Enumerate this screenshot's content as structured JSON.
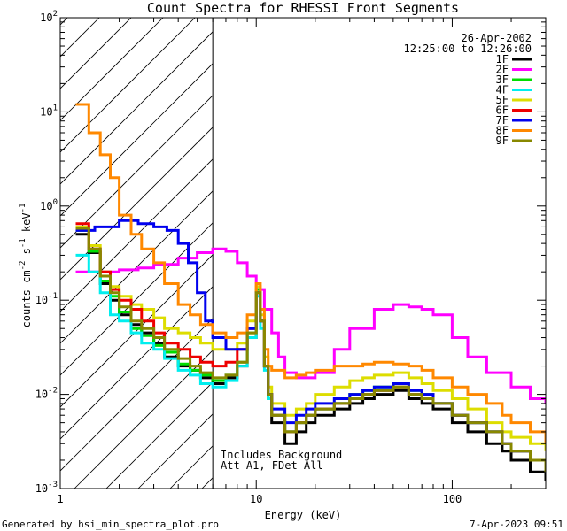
{
  "chart_data": {
    "type": "line",
    "title": "Count Spectra for RHESSI Front Segments",
    "xlabel": "Energy (keV)",
    "ylabel_base": "counts cm",
    "ylabel_exp1": "-2",
    "ylabel_mid": " s",
    "ylabel_exp2": "-1",
    "ylabel_mid2": " keV",
    "ylabel_exp3": "-1",
    "x_scale": "log",
    "y_scale": "log",
    "xlim": [
      1,
      300
    ],
    "ylim": [
      0.001,
      100
    ],
    "x_ticks": [
      {
        "value": 1,
        "label": "1"
      },
      {
        "value": 10,
        "label": "10"
      },
      {
        "value": 100,
        "label": "100"
      }
    ],
    "y_ticks": [
      {
        "value": 0.001,
        "base": "10",
        "exp": "-3"
      },
      {
        "value": 0.01,
        "base": "10",
        "exp": "-2"
      },
      {
        "value": 0.1,
        "base": "10",
        "exp": "-1"
      },
      {
        "value": 1,
        "base": "10",
        "exp": "0"
      },
      {
        "value": 10,
        "base": "10",
        "exp": "1"
      },
      {
        "value": 100,
        "base": "10",
        "exp": "2"
      }
    ],
    "hatched_region": {
      "xmin": 1,
      "xmax": 6
    },
    "date": "26-Apr-2002",
    "time_range": "12:25:00 to 12:26:00",
    "annotation_line1": "Includes Background",
    "annotation_line2": "Att A1, FDet All",
    "legend_position": "top-right",
    "series": [
      {
        "name": "1F",
        "color": "#000000",
        "x": [
          1.2,
          1.4,
          1.6,
          1.8,
          2,
          2.3,
          2.6,
          3,
          3.4,
          4,
          4.6,
          5.2,
          6,
          7,
          8,
          9,
          10,
          10.5,
          11,
          11.5,
          12,
          14,
          16,
          18,
          20,
          25,
          30,
          35,
          40,
          50,
          60,
          70,
          80,
          100,
          120,
          150,
          180,
          200,
          250,
          300
        ],
        "y": [
          0.5,
          0.32,
          0.15,
          0.1,
          0.07,
          0.055,
          0.045,
          0.035,
          0.025,
          0.02,
          0.018,
          0.015,
          0.013,
          0.015,
          0.02,
          0.04,
          0.12,
          0.06,
          0.02,
          0.01,
          0.005,
          0.003,
          0.004,
          0.005,
          0.006,
          0.007,
          0.008,
          0.009,
          0.01,
          0.011,
          0.009,
          0.008,
          0.007,
          0.005,
          0.004,
          0.003,
          0.0025,
          0.002,
          0.0015,
          0.0012
        ]
      },
      {
        "name": "2F",
        "color": "#ff00ff",
        "x": [
          1.2,
          1.5,
          2,
          2.5,
          3,
          4,
          5,
          6,
          7,
          8,
          9,
          10,
          11,
          12,
          13,
          14,
          16,
          20,
          25,
          30,
          40,
          50,
          60,
          70,
          80,
          100,
          120,
          150,
          200,
          250,
          300
        ],
        "y": [
          0.2,
          0.2,
          0.21,
          0.22,
          0.24,
          0.28,
          0.32,
          0.35,
          0.33,
          0.25,
          0.18,
          0.13,
          0.08,
          0.045,
          0.025,
          0.017,
          0.015,
          0.017,
          0.03,
          0.05,
          0.08,
          0.09,
          0.085,
          0.08,
          0.07,
          0.04,
          0.025,
          0.017,
          0.012,
          0.009,
          0.008
        ]
      },
      {
        "name": "3F",
        "color": "#00dd00",
        "x": [
          1.2,
          1.4,
          1.6,
          1.8,
          2,
          2.3,
          2.6,
          3,
          3.4,
          4,
          4.6,
          5.2,
          6,
          7,
          8,
          9,
          10,
          10.5,
          11,
          11.5,
          12,
          14,
          16,
          18,
          20,
          25,
          30,
          35,
          40,
          50,
          60,
          70,
          80,
          100,
          120,
          150,
          180,
          200,
          250,
          300
        ],
        "y": [
          0.55,
          0.33,
          0.16,
          0.11,
          0.075,
          0.05,
          0.042,
          0.033,
          0.028,
          0.021,
          0.018,
          0.016,
          0.014,
          0.016,
          0.022,
          0.045,
          0.13,
          0.06,
          0.02,
          0.009,
          0.006,
          0.004,
          0.005,
          0.006,
          0.007,
          0.008,
          0.01,
          0.011,
          0.012,
          0.013,
          0.011,
          0.01,
          0.008,
          0.006,
          0.005,
          0.004,
          0.003,
          0.0025,
          0.002,
          0.0015
        ]
      },
      {
        "name": "4F",
        "color": "#00eeee",
        "x": [
          1.2,
          1.4,
          1.6,
          1.8,
          2,
          2.3,
          2.6,
          3,
          3.4,
          4,
          4.6,
          5.2,
          6,
          7,
          8,
          9,
          10,
          10.5,
          11,
          11.5,
          12,
          14,
          16,
          18,
          20,
          25,
          30,
          35,
          40,
          50,
          60,
          70,
          80,
          100,
          120,
          150,
          180,
          200,
          250,
          300
        ],
        "y": [
          0.3,
          0.2,
          0.12,
          0.07,
          0.06,
          0.045,
          0.035,
          0.03,
          0.024,
          0.018,
          0.016,
          0.013,
          0.012,
          0.014,
          0.02,
          0.04,
          0.11,
          0.05,
          0.018,
          0.009,
          0.006,
          0.004,
          0.005,
          0.006,
          0.007,
          0.008,
          0.009,
          0.01,
          0.011,
          0.012,
          0.01,
          0.009,
          0.008,
          0.006,
          0.005,
          0.004,
          0.003,
          0.0025,
          0.002,
          0.0015
        ]
      },
      {
        "name": "5F",
        "color": "#dddd00",
        "x": [
          1.2,
          1.4,
          1.6,
          1.8,
          2,
          2.3,
          2.6,
          3,
          3.4,
          4,
          4.6,
          5.2,
          6,
          7,
          8,
          9,
          10,
          10.5,
          11,
          11.5,
          12,
          14,
          16,
          18,
          20,
          25,
          30,
          35,
          40,
          50,
          60,
          70,
          80,
          100,
          120,
          150,
          180,
          200,
          250,
          300
        ],
        "y": [
          0.6,
          0.38,
          0.2,
          0.14,
          0.11,
          0.09,
          0.08,
          0.065,
          0.05,
          0.045,
          0.04,
          0.035,
          0.03,
          0.03,
          0.035,
          0.06,
          0.14,
          0.07,
          0.025,
          0.012,
          0.008,
          0.006,
          0.007,
          0.008,
          0.01,
          0.012,
          0.014,
          0.015,
          0.016,
          0.017,
          0.015,
          0.013,
          0.011,
          0.009,
          0.007,
          0.005,
          0.004,
          0.0035,
          0.003,
          0.0025
        ]
      },
      {
        "name": "6F",
        "color": "#ee0000",
        "x": [
          1.2,
          1.4,
          1.6,
          1.8,
          2,
          2.3,
          2.6,
          3,
          3.4,
          4,
          4.6,
          5.2,
          6,
          7,
          8,
          9,
          10,
          10.5,
          11,
          11.5,
          12,
          14,
          16,
          18,
          20,
          25,
          30,
          35,
          40,
          50,
          60,
          70,
          80,
          100,
          120,
          150,
          180,
          200,
          250,
          300
        ],
        "y": [
          0.65,
          0.35,
          0.2,
          0.13,
          0.1,
          0.08,
          0.06,
          0.045,
          0.035,
          0.03,
          0.025,
          0.022,
          0.02,
          0.022,
          0.03,
          0.05,
          0.12,
          0.06,
          0.02,
          0.01,
          0.006,
          0.004,
          0.005,
          0.006,
          0.007,
          0.008,
          0.009,
          0.01,
          0.011,
          0.012,
          0.01,
          0.009,
          0.008,
          0.006,
          0.005,
          0.004,
          0.003,
          0.0025,
          0.002,
          0.0015
        ]
      },
      {
        "name": "7F",
        "color": "#0000ee",
        "x": [
          1.2,
          1.5,
          2,
          2.5,
          3,
          3.5,
          4,
          4.5,
          5,
          5.5,
          6,
          7,
          8,
          9,
          10,
          10.5,
          11,
          11.5,
          12,
          14,
          16,
          18,
          20,
          25,
          30,
          35,
          40,
          50,
          60,
          70,
          80,
          100,
          120,
          150,
          180,
          200,
          250,
          300
        ],
        "y": [
          0.55,
          0.6,
          0.7,
          0.65,
          0.6,
          0.55,
          0.4,
          0.25,
          0.12,
          0.06,
          0.04,
          0.03,
          0.03,
          0.05,
          0.12,
          0.06,
          0.02,
          0.01,
          0.007,
          0.005,
          0.006,
          0.007,
          0.008,
          0.009,
          0.01,
          0.011,
          0.012,
          0.013,
          0.011,
          0.01,
          0.008,
          0.006,
          0.005,
          0.004,
          0.003,
          0.0025,
          0.002,
          0.0015
        ]
      },
      {
        "name": "8F",
        "color": "#ff8800",
        "x": [
          1.2,
          1.4,
          1.6,
          1.8,
          2,
          2.3,
          2.6,
          3,
          3.4,
          4,
          4.6,
          5.2,
          6,
          7,
          8,
          9,
          10,
          10.5,
          11,
          11.5,
          12,
          14,
          16,
          18,
          20,
          25,
          30,
          35,
          40,
          50,
          60,
          70,
          80,
          100,
          120,
          150,
          180,
          200,
          250,
          300
        ],
        "y": [
          12,
          6,
          3.5,
          2,
          0.8,
          0.5,
          0.35,
          0.25,
          0.15,
          0.09,
          0.07,
          0.055,
          0.045,
          0.04,
          0.045,
          0.07,
          0.15,
          0.08,
          0.03,
          0.02,
          0.018,
          0.015,
          0.016,
          0.017,
          0.018,
          0.02,
          0.02,
          0.021,
          0.022,
          0.021,
          0.02,
          0.018,
          0.015,
          0.012,
          0.01,
          0.008,
          0.006,
          0.005,
          0.004,
          0.003
        ]
      },
      {
        "name": "9F",
        "color": "#888800",
        "x": [
          1.2,
          1.4,
          1.6,
          1.8,
          2,
          2.3,
          2.6,
          3,
          3.4,
          4,
          4.6,
          5.2,
          6,
          7,
          8,
          9,
          10,
          10.5,
          11,
          11.5,
          12,
          14,
          16,
          18,
          20,
          25,
          30,
          35,
          40,
          50,
          60,
          70,
          80,
          100,
          120,
          150,
          180,
          200,
          250,
          300
        ],
        "y": [
          0.58,
          0.35,
          0.18,
          0.12,
          0.085,
          0.06,
          0.05,
          0.04,
          0.03,
          0.024,
          0.02,
          0.017,
          0.015,
          0.016,
          0.022,
          0.045,
          0.12,
          0.06,
          0.02,
          0.01,
          0.006,
          0.004,
          0.005,
          0.006,
          0.007,
          0.008,
          0.009,
          0.01,
          0.011,
          0.012,
          0.01,
          0.009,
          0.008,
          0.006,
          0.005,
          0.004,
          0.003,
          0.0025,
          0.002,
          0.0015
        ]
      }
    ]
  },
  "footer": {
    "generator": "Generated by hsi_min_spectra_plot.pro",
    "timestamp": "7-Apr-2023 09:51"
  }
}
